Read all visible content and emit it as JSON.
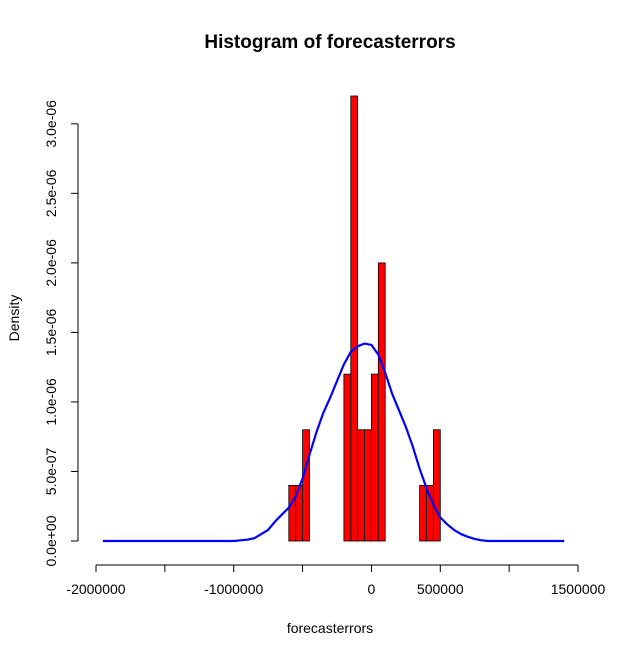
{
  "chart_data": {
    "type": "bar",
    "title": "Histogram of forecasterrors",
    "xlabel": "forecasterrors",
    "ylabel": "Density",
    "xlim": [
      -2000000,
      1500000
    ],
    "ylim": [
      0,
      3.2e-06
    ],
    "x_ticks": [
      {
        "value": -2000000,
        "label": "-2000000"
      },
      {
        "value": -1500000,
        "label": ""
      },
      {
        "value": -1000000,
        "label": "-1000000"
      },
      {
        "value": -500000,
        "label": ""
      },
      {
        "value": 0,
        "label": "0"
      },
      {
        "value": 500000,
        "label": "500000"
      },
      {
        "value": 1000000,
        "label": ""
      },
      {
        "value": 1500000,
        "label": "1500000"
      }
    ],
    "y_ticks": [
      {
        "value": 0,
        "label": "0.0e+00"
      },
      {
        "value": 5e-07,
        "label": "5.0e-07"
      },
      {
        "value": 1e-06,
        "label": "1.0e-06"
      },
      {
        "value": 1.5e-06,
        "label": "1.5e-06"
      },
      {
        "value": 2e-06,
        "label": "2.0e-06"
      },
      {
        "value": 2.5e-06,
        "label": "2.5e-06"
      },
      {
        "value": 3e-06,
        "label": "3.0e-06"
      }
    ],
    "bin_width": 50000,
    "bins": [
      {
        "start": -600000,
        "density": 4e-07
      },
      {
        "start": -550000,
        "density": 4e-07
      },
      {
        "start": -500000,
        "density": 8e-07
      },
      {
        "start": -200000,
        "density": 1.2e-06
      },
      {
        "start": -150000,
        "density": 3.2e-06
      },
      {
        "start": -100000,
        "density": 8e-07
      },
      {
        "start": -50000,
        "density": 8e-07
      },
      {
        "start": 0,
        "density": 1.2e-06
      },
      {
        "start": 50000,
        "density": 2e-06
      },
      {
        "start": 350000,
        "density": 4e-07
      },
      {
        "start": 400000,
        "density": 4e-07
      },
      {
        "start": 450000,
        "density": 8e-07
      }
    ],
    "density_curve": {
      "x": [
        -1950000,
        -1500000,
        -1000000,
        -950000,
        -900000,
        -850000,
        -800000,
        -750000,
        -700000,
        -650000,
        -600000,
        -550000,
        -500000,
        -450000,
        -400000,
        -350000,
        -300000,
        -250000,
        -200000,
        -150000,
        -100000,
        -50000,
        0,
        50000,
        100000,
        150000,
        200000,
        250000,
        300000,
        350000,
        400000,
        450000,
        500000,
        550000,
        600000,
        650000,
        700000,
        750000,
        800000,
        850000,
        900000,
        1000000,
        1400000
      ],
      "y": [
        0,
        0,
        0,
        5e-09,
        1e-08,
        2e-08,
        5e-08,
        8e-08,
        1.4e-07,
        1.9e-07,
        2.4e-07,
        3.2e-07,
        4.5e-07,
        6.2e-07,
        7.8e-07,
        9.2e-07,
        1.03e-06,
        1.15e-06,
        1.27e-06,
        1.36e-06,
        1.4e-06,
        1.42e-06,
        1.41e-06,
        1.34e-06,
        1.21e-06,
        1.06e-06,
        9.4e-07,
        8.2e-07,
        6.8e-07,
        5.2e-07,
        3.8e-07,
        2.6e-07,
        1.7e-07,
        1.2e-07,
        8e-08,
        5e-08,
        3e-08,
        1.5e-08,
        5e-09,
        0,
        0,
        0,
        0
      ]
    },
    "colors": {
      "bar_fill": "#ff0000",
      "bar_stroke": "#000000",
      "curve": "#0000ff",
      "axis": "#000000",
      "background": "#ffffff"
    },
    "grid": false,
    "legend": "none"
  }
}
